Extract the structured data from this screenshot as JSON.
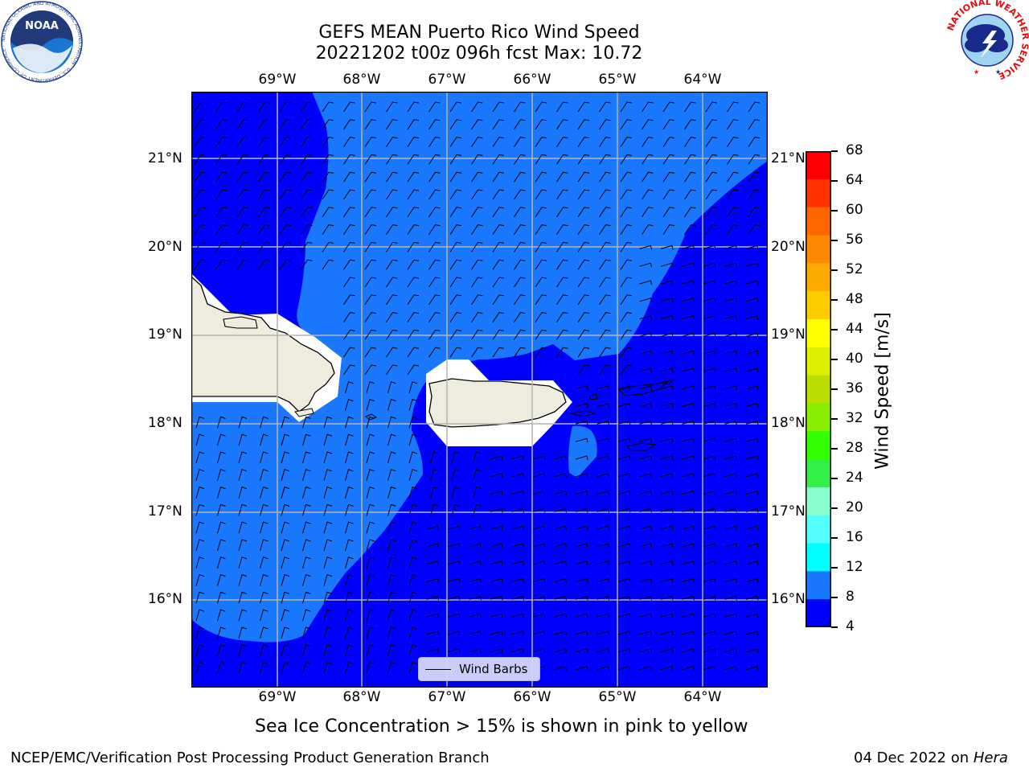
{
  "title": {
    "line1": "GEFS MEAN Puerto Rico Wind Speed",
    "line2": "20221202 t00z 096h fcst   Max: 10.72"
  },
  "map": {
    "lon_labels": [
      "69°W",
      "68°W",
      "67°W",
      "66°W",
      "65°W",
      "64°W"
    ],
    "lat_labels": [
      "21°N",
      "20°N",
      "19°N",
      "18°N",
      "17°N",
      "16°N"
    ],
    "legend_label": "Wind Barbs",
    "colors": {
      "band_4_8": "#0000ff",
      "band_8_12": "#1a78ff",
      "land": "#eeecdc",
      "grid": "#b4b4b4"
    }
  },
  "colorbar": {
    "label": "Wind Speed [m/s]",
    "ticks": [
      "68",
      "64",
      "60",
      "56",
      "52",
      "48",
      "44",
      "40",
      "36",
      "32",
      "28",
      "24",
      "20",
      "16",
      "12",
      "8",
      "4"
    ],
    "colors": [
      "#ff0000",
      "#ff3300",
      "#ff6600",
      "#ff8800",
      "#ffaa00",
      "#ffcc00",
      "#ffff00",
      "#ddee00",
      "#bbdd00",
      "#88ee00",
      "#33ff00",
      "#33ee44",
      "#88ffcc",
      "#55ffff",
      "#00ffff",
      "#1a78ff",
      "#0000ff"
    ]
  },
  "notes": {
    "sea_ice": "Sea Ice Concentration > 15% is shown in pink to yellow",
    "branch": "NCEP/EMC/Verification Post Processing Product Generation Branch",
    "date_prefix": "04 Dec 2022 on ",
    "machine": "Hera"
  },
  "logos": {
    "noaa_text": "NOAA",
    "noaa_ring": "NATIONAL OCEANIC AND ATMOSPHERIC ADMINISTRATION · U.S. DEPARTMENT OF COMMERCE ·",
    "nws_ring": "NATIONAL WEATHER SERVICE"
  }
}
